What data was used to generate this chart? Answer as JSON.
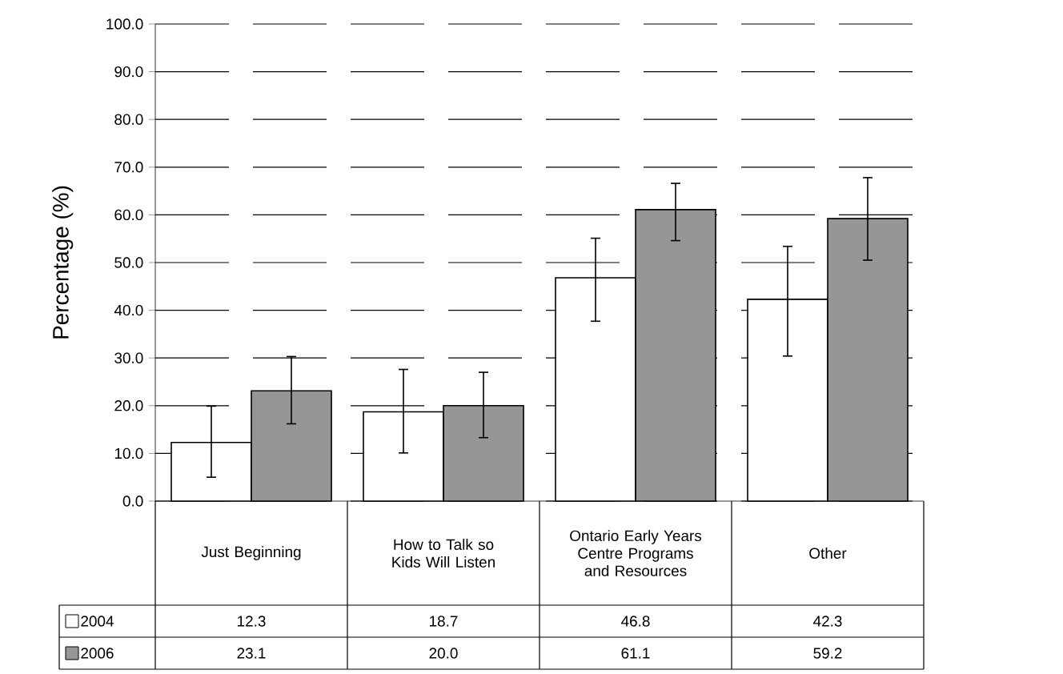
{
  "chart_data": {
    "type": "bar",
    "ylabel": "Percentage (%)",
    "categories": [
      "Just Beginning",
      "How to Talk so Kids Will Listen",
      "Ontario Early Years Centre Programs and Resources",
      "Other"
    ],
    "series": [
      {
        "name": "2004",
        "color": "#ffffff",
        "values": [
          12.3,
          18.7,
          46.8,
          42.3
        ],
        "value_labels": [
          "12.3",
          "18.7",
          "46.8",
          "42.3"
        ],
        "errors": [
          [
            5.0,
            19.9
          ],
          [
            10.1,
            27.6
          ],
          [
            37.7,
            55.1
          ],
          [
            30.4,
            53.4
          ]
        ]
      },
      {
        "name": "2006",
        "color": "#969696",
        "values": [
          23.1,
          20.0,
          61.1,
          59.2
        ],
        "value_labels": [
          "23.1",
          "20.0",
          "61.1",
          "59.2"
        ],
        "errors": [
          [
            16.2,
            30.3
          ],
          [
            13.3,
            27.0
          ],
          [
            54.6,
            66.6
          ],
          [
            50.5,
            67.8
          ]
        ]
      }
    ],
    "ylim": [
      0,
      100
    ],
    "yticks": [
      {
        "value": 0,
        "label": "0.0"
      },
      {
        "value": 10,
        "label": "10.0"
      },
      {
        "value": 20,
        "label": "20.0"
      },
      {
        "value": 30,
        "label": "30.0"
      },
      {
        "value": 40,
        "label": "40.0"
      },
      {
        "value": 50,
        "label": "50.0"
      },
      {
        "value": 60,
        "label": "60.0"
      },
      {
        "value": 70,
        "label": "70.0"
      },
      {
        "value": 80,
        "label": "80.0"
      },
      {
        "value": 90,
        "label": "90.0"
      },
      {
        "value": 100,
        "label": "100.0"
      }
    ],
    "grid": "y",
    "legend": "bottom"
  }
}
